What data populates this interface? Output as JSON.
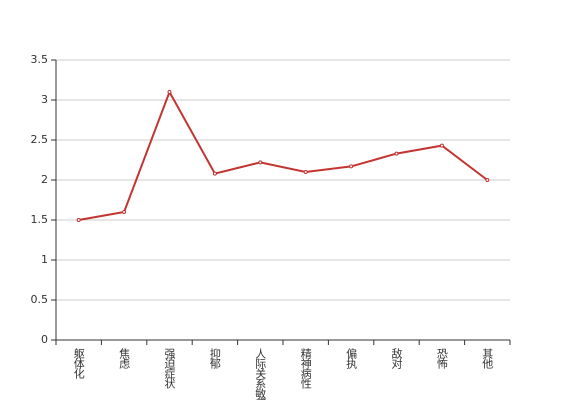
{
  "chart_data": {
    "type": "line",
    "categories": [
      "躯体化",
      "焦虑",
      "强迫症状",
      "抑郁",
      "人际关系敏感",
      "精神病性",
      "偏执",
      "敌对",
      "恐怖",
      "其他"
    ],
    "series": [
      {
        "color": "#c23531",
        "values": [
          1.5,
          1.6,
          3.1,
          2.08,
          2.22,
          2.1,
          2.17,
          2.33,
          2.43,
          2.0
        ]
      }
    ],
    "ylim": [
      0,
      3.5
    ],
    "yticks": [
      0,
      0.5,
      1,
      1.5,
      2,
      2.5,
      3,
      3.5
    ],
    "grid": true
  }
}
